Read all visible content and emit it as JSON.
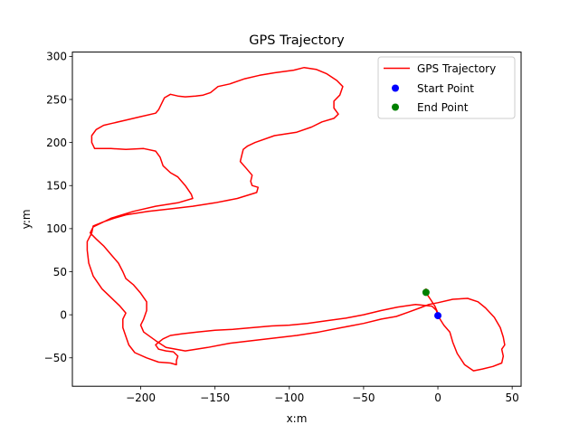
{
  "chart_data": {
    "type": "line",
    "title": "GPS Trajectory",
    "xlabel": "x:m",
    "ylabel": "y:m",
    "xlim": [
      -246,
      56
    ],
    "ylim": [
      -83,
      305
    ],
    "xticks": [
      -200,
      -150,
      -100,
      -50,
      0,
      50
    ],
    "yticks": [
      -50,
      0,
      50,
      100,
      150,
      200,
      250,
      300
    ],
    "xtick_labels": [
      "−200",
      "−150",
      "−100",
      "−50",
      "0",
      "50"
    ],
    "ytick_labels": [
      "−50",
      "0",
      "50",
      "100",
      "150",
      "200",
      "250",
      "300"
    ],
    "grid": false,
    "legend_position": "top-right",
    "legend": [
      {
        "label": "GPS Trajectory",
        "kind": "line",
        "color": "#ff0000"
      },
      {
        "label": "Start Point",
        "kind": "marker",
        "color": "#0000ff"
      },
      {
        "label": "End Point",
        "kind": "marker",
        "color": "#008000"
      }
    ],
    "series": [
      {
        "name": "GPS Trajectory",
        "color": "#ff0000",
        "points": [
          [
            0,
            -1
          ],
          [
            -1,
            5
          ],
          [
            -4,
            10
          ],
          [
            -15,
            12
          ],
          [
            -27,
            9
          ],
          [
            -38,
            5
          ],
          [
            -50,
            0
          ],
          [
            -62,
            -4
          ],
          [
            -75,
            -7
          ],
          [
            -88,
            -10
          ],
          [
            -100,
            -12
          ],
          [
            -112,
            -13
          ],
          [
            -125,
            -15
          ],
          [
            -138,
            -17
          ],
          [
            -150,
            -18
          ],
          [
            -162,
            -20
          ],
          [
            -172,
            -22
          ],
          [
            -180,
            -24
          ],
          [
            -185,
            -28
          ],
          [
            -188,
            -32
          ],
          [
            -190,
            -35
          ],
          [
            -188,
            -40
          ],
          [
            -183,
            -42
          ],
          [
            -178,
            -43
          ],
          [
            -175,
            -48
          ],
          [
            -176,
            -53
          ],
          [
            -176,
            -58
          ],
          [
            -180,
            -56
          ],
          [
            -188,
            -55
          ],
          [
            -196,
            -50
          ],
          [
            -204,
            -44
          ],
          [
            -208,
            -35
          ],
          [
            -210,
            -25
          ],
          [
            -212,
            -15
          ],
          [
            -212,
            -5
          ],
          [
            -210,
            2
          ],
          [
            -214,
            10
          ],
          [
            -220,
            20
          ],
          [
            -226,
            30
          ],
          [
            -232,
            45
          ],
          [
            -235,
            60
          ],
          [
            -236,
            75
          ],
          [
            -236,
            85
          ],
          [
            -233,
            95
          ],
          [
            -232,
            103
          ],
          [
            -225,
            108
          ],
          [
            -218,
            112
          ],
          [
            -210,
            116
          ],
          [
            -195,
            120
          ],
          [
            -180,
            123
          ],
          [
            -165,
            126
          ],
          [
            -150,
            130
          ],
          [
            -135,
            135
          ],
          [
            -122,
            142
          ],
          [
            -121,
            148
          ],
          [
            -125,
            150
          ],
          [
            -126,
            155
          ],
          [
            -125,
            162
          ],
          [
            -129,
            170
          ],
          [
            -133,
            178
          ],
          [
            -132,
            185
          ],
          [
            -131,
            192
          ],
          [
            -128,
            196
          ],
          [
            -123,
            200
          ],
          [
            -110,
            208
          ],
          [
            -95,
            212
          ],
          [
            -85,
            218
          ],
          [
            -78,
            224
          ],
          [
            -70,
            228
          ],
          [
            -67,
            233
          ],
          [
            -70,
            240
          ],
          [
            -70,
            248
          ],
          [
            -66,
            255
          ],
          [
            -64,
            265
          ],
          [
            -68,
            272
          ],
          [
            -75,
            280
          ],
          [
            -82,
            285
          ],
          [
            -90,
            287
          ],
          [
            -97,
            284
          ],
          [
            -110,
            281
          ],
          [
            -120,
            278
          ],
          [
            -130,
            274
          ],
          [
            -140,
            268
          ],
          [
            -148,
            265
          ],
          [
            -153,
            258
          ],
          [
            -158,
            255
          ],
          [
            -163,
            254
          ],
          [
            -170,
            253
          ],
          [
            -175,
            254
          ],
          [
            -180,
            256
          ],
          [
            -184,
            252
          ],
          [
            -186,
            245
          ],
          [
            -188,
            238
          ],
          [
            -190,
            234
          ],
          [
            -200,
            230
          ],
          [
            -210,
            226
          ],
          [
            -220,
            222
          ],
          [
            -225,
            220
          ],
          [
            -230,
            215
          ],
          [
            -233,
            208
          ],
          [
            -233,
            200
          ],
          [
            -231,
            193
          ],
          [
            -220,
            193
          ],
          [
            -210,
            192
          ],
          [
            -198,
            193
          ],
          [
            -190,
            190
          ],
          [
            -187,
            183
          ],
          [
            -185,
            173
          ],
          [
            -180,
            165
          ],
          [
            -175,
            160
          ],
          [
            -170,
            150
          ],
          [
            -166,
            140
          ],
          [
            -165,
            135
          ],
          [
            -175,
            130
          ],
          [
            -190,
            126
          ],
          [
            -205,
            120
          ],
          [
            -220,
            112
          ],
          [
            -232,
            102
          ],
          [
            -234,
            95
          ],
          [
            -230,
            88
          ],
          [
            -225,
            80
          ],
          [
            -220,
            70
          ],
          [
            -215,
            60
          ],
          [
            -212,
            50
          ],
          [
            -210,
            42
          ],
          [
            -205,
            35
          ],
          [
            -200,
            25
          ],
          [
            -196,
            15
          ],
          [
            -196,
            5
          ],
          [
            -198,
            -5
          ],
          [
            -200,
            -12
          ],
          [
            -198,
            -20
          ],
          [
            -190,
            -30
          ],
          [
            -183,
            -38
          ],
          [
            -170,
            -42
          ],
          [
            -155,
            -38
          ],
          [
            -140,
            -33
          ],
          [
            -125,
            -30
          ],
          [
            -110,
            -27
          ],
          [
            -95,
            -24
          ],
          [
            -80,
            -20
          ],
          [
            -65,
            -15
          ],
          [
            -50,
            -10
          ],
          [
            -38,
            -5
          ],
          [
            -28,
            -2
          ],
          [
            -20,
            3
          ],
          [
            -12,
            8
          ],
          [
            -6,
            12
          ],
          [
            0,
            14
          ],
          [
            10,
            18
          ],
          [
            20,
            19
          ],
          [
            27,
            15
          ],
          [
            32,
            8
          ],
          [
            38,
            -3
          ],
          [
            42,
            -15
          ],
          [
            44,
            -26
          ],
          [
            45,
            -35
          ],
          [
            43,
            -40
          ],
          [
            44,
            -48
          ],
          [
            43,
            -56
          ],
          [
            37,
            -60
          ],
          [
            30,
            -63
          ],
          [
            24,
            -65
          ],
          [
            18,
            -58
          ],
          [
            13,
            -45
          ],
          [
            10,
            -32
          ],
          [
            8,
            -20
          ],
          [
            4,
            -12
          ],
          [
            1,
            -4
          ],
          [
            0,
            2
          ],
          [
            -2,
            10
          ],
          [
            -5,
            18
          ],
          [
            -7,
            23
          ],
          [
            -7,
            28
          ],
          [
            -8,
            30
          ],
          [
            -8,
            26
          ]
        ]
      }
    ],
    "start_point": {
      "x": 0,
      "y": -1,
      "color": "#0000ff"
    },
    "end_point": {
      "x": -8,
      "y": 26,
      "color": "#008000"
    }
  }
}
